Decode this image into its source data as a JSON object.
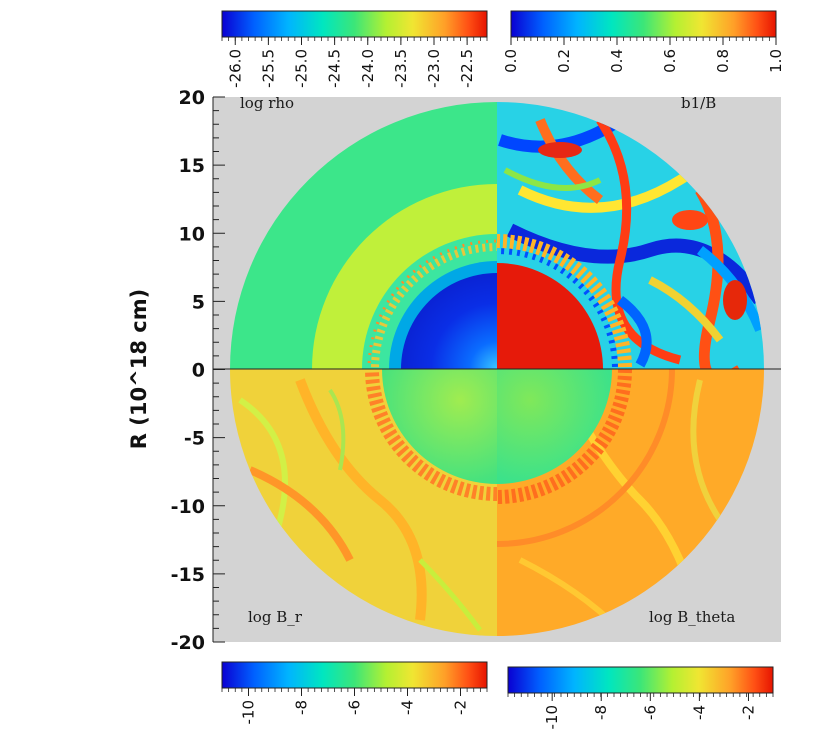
{
  "chart_data": {
    "type": "heatmap",
    "y_axis": {
      "label": "R (10^18 cm)",
      "ticks": [
        20,
        15,
        10,
        5,
        0,
        -5,
        -10,
        -15,
        -20
      ],
      "range": [
        -20,
        20
      ]
    },
    "quadrants": [
      {
        "position": "top-left",
        "label": "log rho"
      },
      {
        "position": "top-right",
        "label": "b1/B"
      },
      {
        "position": "bottom-left",
        "label": "log B_r"
      },
      {
        "position": "bottom-right",
        "label": "log B_theta"
      }
    ],
    "colorbars": [
      {
        "position": "top-left",
        "ticks": [
          "-26.0",
          "-25.5",
          "-25.0",
          "-24.5",
          "-24.0",
          "-23.5",
          "-23.0",
          "-22.5"
        ],
        "range": [
          -26.2,
          -22.2
        ]
      },
      {
        "position": "top-right",
        "ticks": [
          "0.0",
          "0.2",
          "0.4",
          "0.6",
          "0.8",
          "1.0"
        ],
        "range": [
          0,
          1
        ]
      },
      {
        "position": "bottom-left",
        "ticks": [
          "-10",
          "-8",
          "-6",
          "-4",
          "-2"
        ],
        "range": [
          -11,
          -1
        ]
      },
      {
        "position": "bottom-right",
        "ticks": [
          "-10",
          "-8",
          "-6",
          "-4",
          "-2"
        ],
        "range": [
          -11.8,
          -1
        ]
      }
    ],
    "colormap": [
      "#0000c8",
      "#0050ff",
      "#00b4ff",
      "#00e6c8",
      "#32e678",
      "#b4f032",
      "#f0e632",
      "#ffa028",
      "#ff5014",
      "#e61400"
    ],
    "background_color": "#d3d3d3"
  }
}
